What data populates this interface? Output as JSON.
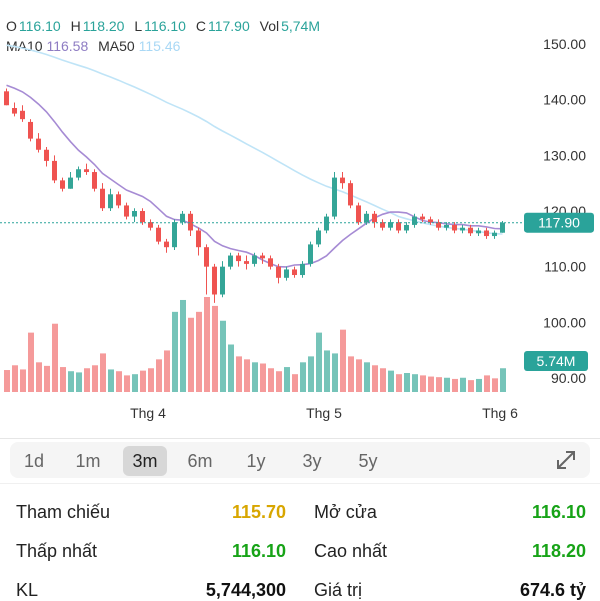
{
  "ohlc": {
    "o_label": "O",
    "o": "116.10",
    "h_label": "H",
    "h": "118.20",
    "l_label": "L",
    "l": "116.10",
    "c_label": "C",
    "c": "117.90",
    "vol_label": "Vol",
    "vol": "5,74M"
  },
  "ma": {
    "ma10_label": "MA10",
    "ma10": "116.58",
    "ma50_label": "MA50",
    "ma50": "115.46"
  },
  "colors": {
    "up": "#34a597",
    "down": "#ef5350",
    "up_vol": "#76c4b9",
    "down_vol": "#f59a9a",
    "ma10": "#a68bd4",
    "ma50": "#bfe4f7",
    "accent": "#2aa39a"
  },
  "chart_data": {
    "type": "candlestick",
    "ylim": [
      88,
      152
    ],
    "yticks": [
      "150.00",
      "140.00",
      "130.00",
      "120.00",
      "110.00",
      "100.00",
      "90.00"
    ],
    "ytick_values": [
      150,
      140,
      130,
      120,
      110,
      100,
      90
    ],
    "xticks": [
      {
        "label": "Thg 4",
        "index": 18
      },
      {
        "label": "Thg 5",
        "index": 40
      },
      {
        "label": "Thg 6",
        "index": 62
      }
    ],
    "current_price": 117.9,
    "current_price_label": "117.90",
    "current_vol_label": "5.74M",
    "candles": [
      [
        141.5,
        139,
        142,
        139
      ],
      [
        138.5,
        137.5,
        139.5,
        137
      ],
      [
        138,
        136.5,
        139,
        136
      ],
      [
        136,
        133,
        136.5,
        132.5
      ],
      [
        133,
        131,
        134,
        130.5
      ],
      [
        131,
        129,
        131.5,
        128
      ],
      [
        129,
        125.5,
        130,
        125
      ],
      [
        125.5,
        124,
        126,
        123.5
      ],
      [
        124,
        126,
        127,
        124
      ],
      [
        126,
        127.5,
        128,
        125.5
      ],
      [
        127.5,
        127,
        128.5,
        126.5
      ],
      [
        127,
        124,
        127.5,
        123.5
      ],
      [
        124,
        120.5,
        125,
        120
      ],
      [
        120.5,
        123,
        124,
        120
      ],
      [
        123,
        121,
        123.5,
        120.5
      ],
      [
        121,
        119,
        121.5,
        118.5
      ],
      [
        119,
        120,
        120.5,
        118
      ],
      [
        120,
        118,
        120.5,
        117.5
      ],
      [
        118,
        117,
        118.5,
        116.5
      ],
      [
        117,
        114.5,
        117.5,
        114
      ],
      [
        114.5,
        113.5,
        115,
        112.5
      ],
      [
        113.5,
        118,
        118.5,
        113
      ],
      [
        118,
        119.5,
        120,
        117.5
      ],
      [
        119.5,
        116.5,
        120,
        115.5
      ],
      [
        116.5,
        113.5,
        117,
        112
      ],
      [
        113.5,
        110,
        114,
        105
      ],
      [
        110,
        105,
        110.5,
        103.5
      ],
      [
        105,
        110,
        111,
        104.5
      ],
      [
        110,
        112,
        112.5,
        109.5
      ],
      [
        112,
        111,
        112.5,
        110
      ],
      [
        111,
        110.5,
        112,
        109.5
      ],
      [
        110.5,
        112,
        112.5,
        110
      ],
      [
        112,
        111.5,
        112.5,
        110.5
      ],
      [
        111.5,
        110,
        112,
        109.5
      ],
      [
        110,
        108,
        110.5,
        107
      ],
      [
        108,
        109.5,
        110,
        107.5
      ],
      [
        109.5,
        108.5,
        110,
        108
      ],
      [
        108.5,
        110.5,
        111,
        108
      ],
      [
        110.5,
        114,
        114.5,
        110
      ],
      [
        114,
        116.5,
        117,
        113.5
      ],
      [
        116.5,
        119,
        119.5,
        116
      ],
      [
        119,
        126,
        127,
        118.5
      ],
      [
        126,
        125,
        127,
        124
      ],
      [
        125,
        121,
        125.5,
        120.5
      ],
      [
        121,
        118,
        121.5,
        117.5
      ],
      [
        118,
        119.5,
        120,
        117.5
      ],
      [
        119.5,
        118,
        120,
        117
      ],
      [
        118,
        117,
        118.5,
        116.5
      ],
      [
        117,
        118,
        118.5,
        116.5
      ],
      [
        118,
        116.5,
        118.5,
        116
      ],
      [
        116.5,
        117.5,
        118,
        116
      ],
      [
        117.5,
        119,
        119.5,
        117
      ],
      [
        119,
        118.5,
        119.5,
        118
      ],
      [
        118.5,
        118,
        119,
        117.5
      ],
      [
        118,
        117,
        118.5,
        116.5
      ],
      [
        117,
        117.5,
        118,
        116.5
      ],
      [
        117.5,
        116.5,
        118,
        116
      ],
      [
        116.5,
        117,
        117.5,
        116
      ],
      [
        117,
        116,
        117.5,
        115.5
      ],
      [
        116,
        116.5,
        117,
        115.5
      ],
      [
        116.5,
        115.5,
        117,
        115
      ],
      [
        115.5,
        116.1,
        116.5,
        115
      ],
      [
        116.1,
        117.9,
        118.2,
        116.1
      ]
    ],
    "volumes": [
      {
        "v": 0.37,
        "up": false
      },
      {
        "v": 0.45,
        "up": false
      },
      {
        "v": 0.38,
        "up": false
      },
      {
        "v": 1.0,
        "up": false
      },
      {
        "v": 0.5,
        "up": false
      },
      {
        "v": 0.44,
        "up": false
      },
      {
        "v": 1.15,
        "up": false
      },
      {
        "v": 0.42,
        "up": false
      },
      {
        "v": 0.35,
        "up": true
      },
      {
        "v": 0.33,
        "up": true
      },
      {
        "v": 0.4,
        "up": false
      },
      {
        "v": 0.45,
        "up": false
      },
      {
        "v": 0.65,
        "up": false
      },
      {
        "v": 0.38,
        "up": true
      },
      {
        "v": 0.35,
        "up": false
      },
      {
        "v": 0.28,
        "up": false
      },
      {
        "v": 0.3,
        "up": true
      },
      {
        "v": 0.36,
        "up": false
      },
      {
        "v": 0.4,
        "up": false
      },
      {
        "v": 0.55,
        "up": false
      },
      {
        "v": 0.7,
        "up": false
      },
      {
        "v": 1.35,
        "up": true
      },
      {
        "v": 1.55,
        "up": true
      },
      {
        "v": 1.25,
        "up": false
      },
      {
        "v": 1.35,
        "up": false
      },
      {
        "v": 1.6,
        "up": false
      },
      {
        "v": 1.45,
        "up": false
      },
      {
        "v": 1.2,
        "up": true
      },
      {
        "v": 0.8,
        "up": true
      },
      {
        "v": 0.6,
        "up": false
      },
      {
        "v": 0.55,
        "up": false
      },
      {
        "v": 0.5,
        "up": true
      },
      {
        "v": 0.48,
        "up": false
      },
      {
        "v": 0.4,
        "up": false
      },
      {
        "v": 0.35,
        "up": false
      },
      {
        "v": 0.42,
        "up": true
      },
      {
        "v": 0.3,
        "up": false
      },
      {
        "v": 0.5,
        "up": true
      },
      {
        "v": 0.6,
        "up": true
      },
      {
        "v": 1.0,
        "up": true
      },
      {
        "v": 0.7,
        "up": true
      },
      {
        "v": 0.65,
        "up": true
      },
      {
        "v": 1.05,
        "up": false
      },
      {
        "v": 0.6,
        "up": false
      },
      {
        "v": 0.55,
        "up": false
      },
      {
        "v": 0.5,
        "up": true
      },
      {
        "v": 0.45,
        "up": false
      },
      {
        "v": 0.4,
        "up": false
      },
      {
        "v": 0.36,
        "up": true
      },
      {
        "v": 0.3,
        "up": false
      },
      {
        "v": 0.32,
        "up": true
      },
      {
        "v": 0.3,
        "up": true
      },
      {
        "v": 0.28,
        "up": false
      },
      {
        "v": 0.26,
        "up": false
      },
      {
        "v": 0.25,
        "up": false
      },
      {
        "v": 0.24,
        "up": true
      },
      {
        "v": 0.22,
        "up": false
      },
      {
        "v": 0.24,
        "up": true
      },
      {
        "v": 0.2,
        "up": false
      },
      {
        "v": 0.22,
        "up": true
      },
      {
        "v": 0.28,
        "up": false
      },
      {
        "v": 0.23,
        "up": false
      },
      {
        "v": 0.4,
        "up": true
      }
    ]
  },
  "tabs": {
    "t1": "1d",
    "t2": "1m",
    "t3": "3m",
    "t4": "6m",
    "t5": "1y",
    "t6": "3y",
    "t7": "5y"
  },
  "stats": {
    "ref_label": "Tham chiếu",
    "ref_val": "115.70",
    "open_label": "Mở cửa",
    "open_val": "116.10",
    "low_label": "Thấp nhất",
    "low_val": "116.10",
    "high_label": "Cao nhất",
    "high_val": "118.20",
    "kl_label": "KL",
    "kl_val": "5,744,300",
    "gt_label": "Giá trị",
    "gt_val": "674.6 tỷ"
  }
}
